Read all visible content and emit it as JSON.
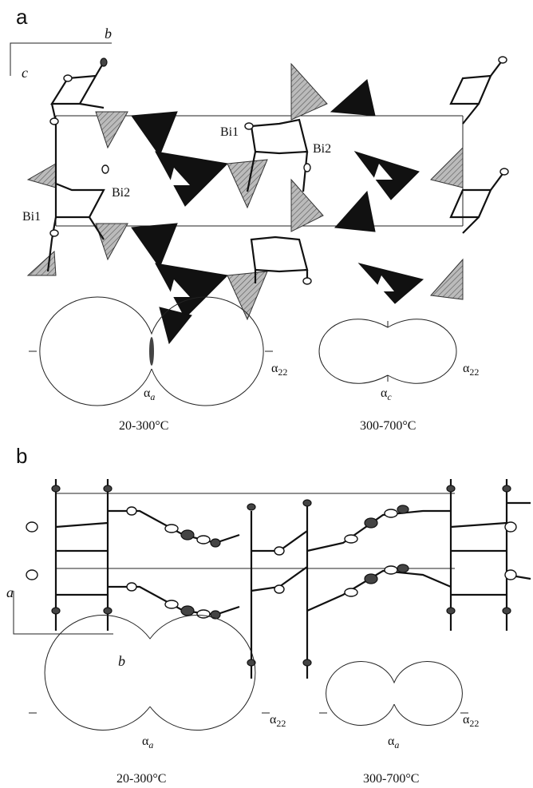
{
  "panels": [
    {
      "label": "a",
      "axis_labels": {
        "horizontal": "b",
        "vertical": "c"
      },
      "atom_labels": [
        "Bi1",
        "Bi2",
        "Bi2",
        "Bi1"
      ],
      "expansion_figures": [
        {
          "range": "20-300°C",
          "axis_min": {
            "symbol": "α",
            "subscript": "a"
          },
          "axis_max": {
            "symbol": "α",
            "subscript": "22"
          }
        },
        {
          "range": "300-700°C",
          "axis_min": {
            "symbol": "α",
            "subscript": "c"
          },
          "axis_max": {
            "symbol": "α",
            "subscript": "22"
          }
        }
      ]
    },
    {
      "label": "b",
      "axis_labels": {
        "horizontal": "b",
        "vertical": "a"
      },
      "expansion_figures": [
        {
          "range": "20-300°C",
          "axis_min": {
            "symbol": "α",
            "subscript": "a"
          },
          "axis_max": {
            "symbol": "α",
            "subscript": "22"
          }
        },
        {
          "range": "300-700°C",
          "axis_min": {
            "symbol": "α",
            "subscript": "a"
          },
          "axis_max": {
            "symbol": "α",
            "subscript": "22"
          }
        }
      ]
    }
  ]
}
